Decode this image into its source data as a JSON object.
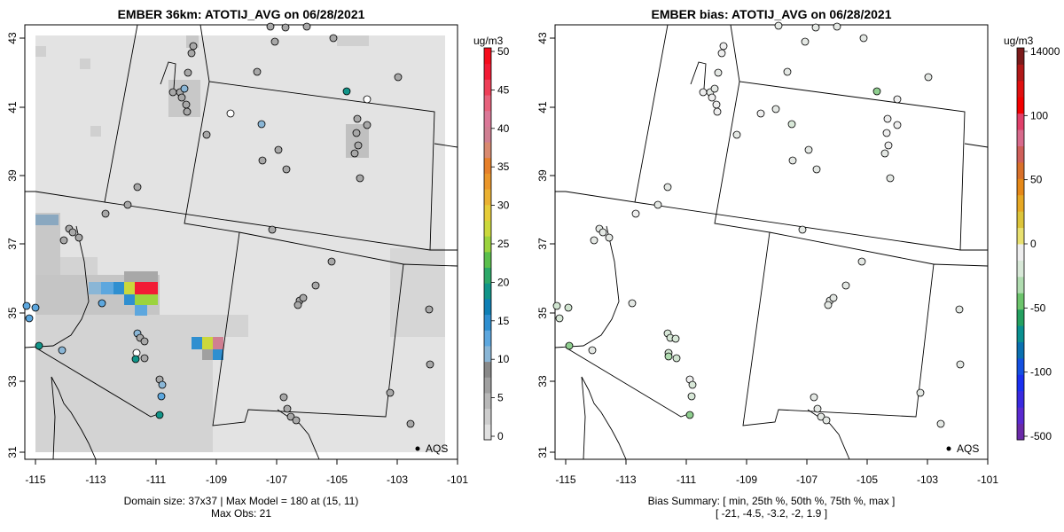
{
  "left_panel": {
    "title": "EMBER 36km: ATOTIJ_AVG on 06/28/2021",
    "unit": "ug/m3",
    "caption_line1": "Domain size: 37x37 | Max Model = 180 at (15, 11)",
    "caption_line2": "Max Obs: 21",
    "legend_label": "AQS",
    "colorbar_ticks": [
      "0",
      "5",
      "10",
      "15",
      "20",
      "25",
      "30",
      "35",
      "40",
      "45",
      "50"
    ],
    "colorbar_colors": [
      "#e0e0e0",
      "#cdcdcd",
      "#b8b8b8",
      "#a0a0a0",
      "#888888",
      "#8ab6d6",
      "#5da7de",
      "#2f8fd0",
      "#0f7fb5",
      "#119488",
      "#2da868",
      "#5bbf4c",
      "#9bd33e",
      "#cbd83c",
      "#e6cc39",
      "#eab132",
      "#ea962a",
      "#e6802a",
      "#d98a70",
      "#d07f92",
      "#db7898",
      "#e7627c",
      "#ee3f58",
      "#f21b35",
      "#f50c1c"
    ]
  },
  "right_panel": {
    "title": "EMBER bias: ATOTIJ_AVG on 06/28/2021",
    "unit": "ug/m3",
    "caption_line1": "Bias Summary: [ min, 25th %, 50th %, 75th %, max ]",
    "caption_line2": "[ -21,   -4.5,   -3.2,   -2,   1.9 ]",
    "legend_label": "AQS",
    "colorbar_ticks": [
      "14000",
      "100",
      "50",
      "0",
      "-50",
      "-100",
      "-500"
    ],
    "colorbar_colors": [
      "#7b1a1a",
      "#b01818",
      "#e01010",
      "#f20000",
      "#e0406a",
      "#d86a8c",
      "#cf5f5a",
      "#d8702a",
      "#e58818",
      "#e6a824",
      "#dcc43a",
      "#e8e070",
      "#eeeeee",
      "#d8e8d8",
      "#b0dcb0",
      "#6cc46c",
      "#24a060",
      "#0a9090",
      "#0a70b0",
      "#1450e0",
      "#1a30f0",
      "#3a2ae0",
      "#5a2ad0",
      "#6a2aa8"
    ]
  },
  "axes": {
    "x_ticks": [
      "-115",
      "-113",
      "-111",
      "-109",
      "-107",
      "-105",
      "-103",
      "-101"
    ],
    "y_ticks": [
      "43",
      "41",
      "39",
      "37",
      "35",
      "33",
      "31"
    ]
  },
  "map": {
    "lon_range": [
      -115.3,
      -100.6
    ],
    "lat_range": [
      30.8,
      43.3
    ]
  }
}
